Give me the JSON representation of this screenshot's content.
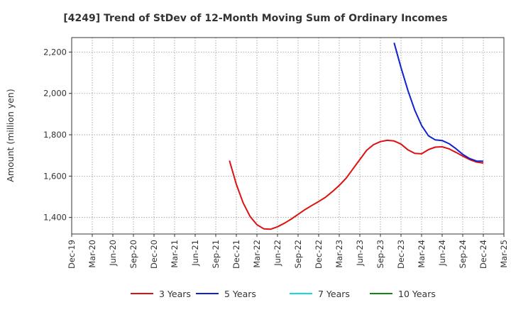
{
  "chart_data": {
    "type": "line",
    "title": "[4249]  Trend of StDev of 12-Month Moving Sum of Ordinary Incomes",
    "xlabel": "",
    "ylabel": "Amount (million yen)",
    "ylim": [
      1320,
      2270
    ],
    "yticks": [
      1400,
      1600,
      1800,
      2000,
      2200
    ],
    "ytick_labels": [
      "1,400",
      "1,600",
      "1,800",
      "2,000",
      "2,200"
    ],
    "x_range": [
      "2019-12",
      "2025-03"
    ],
    "x_ticks": [
      "2019-12",
      "2020-03",
      "2020-06",
      "2020-09",
      "2020-12",
      "2021-03",
      "2021-06",
      "2021-09",
      "2021-12",
      "2022-03",
      "2022-06",
      "2022-09",
      "2022-12",
      "2023-03",
      "2023-06",
      "2023-09",
      "2023-12",
      "2024-03",
      "2024-06",
      "2024-09",
      "2024-12",
      "2025-03"
    ],
    "x_tick_labels": [
      "Dec-19",
      "Mar-20",
      "Jun-20",
      "Sep-20",
      "Dec-20",
      "Mar-21",
      "Jun-21",
      "Sep-21",
      "Dec-21",
      "Mar-22",
      "Jun-22",
      "Sep-22",
      "Dec-22",
      "Mar-23",
      "Jun-23",
      "Sep-23",
      "Dec-23",
      "Mar-24",
      "Jun-24",
      "Sep-24",
      "Dec-24",
      "Mar-25"
    ],
    "grid": true,
    "legend_position": "bottom",
    "series": [
      {
        "name": "3 Years",
        "color": "#dd1111",
        "x": [
          "2021-11",
          "2021-12",
          "2022-01",
          "2022-02",
          "2022-03",
          "2022-04",
          "2022-05",
          "2022-06",
          "2022-07",
          "2022-08",
          "2022-09",
          "2022-10",
          "2022-11",
          "2022-12",
          "2023-01",
          "2023-02",
          "2023-03",
          "2023-04",
          "2023-05",
          "2023-06",
          "2023-07",
          "2023-08",
          "2023-09",
          "2023-10",
          "2023-11",
          "2023-12",
          "2024-01",
          "2024-02",
          "2024-03",
          "2024-04",
          "2024-05",
          "2024-06",
          "2024-07",
          "2024-08",
          "2024-09",
          "2024-10",
          "2024-11",
          "2024-12"
        ],
        "values": [
          1675,
          1560,
          1470,
          1405,
          1365,
          1345,
          1343,
          1355,
          1372,
          1392,
          1415,
          1438,
          1458,
          1477,
          1498,
          1525,
          1555,
          1590,
          1635,
          1680,
          1725,
          1752,
          1767,
          1773,
          1770,
          1755,
          1727,
          1710,
          1708,
          1728,
          1740,
          1742,
          1732,
          1715,
          1697,
          1680,
          1668,
          1663
        ]
      },
      {
        "name": "5 Years",
        "color": "#1122cc",
        "x": [
          "2023-11",
          "2023-12",
          "2024-01",
          "2024-02",
          "2024-03",
          "2024-04",
          "2024-05",
          "2024-06",
          "2024-07",
          "2024-08",
          "2024-09",
          "2024-10",
          "2024-11",
          "2024-12"
        ],
        "values": [
          2245,
          2125,
          2015,
          1920,
          1845,
          1795,
          1775,
          1772,
          1757,
          1733,
          1705,
          1685,
          1673,
          1672
        ]
      },
      {
        "name": "7 Years",
        "color": "#11dddd",
        "x": [],
        "values": []
      },
      {
        "name": "10 Years",
        "color": "#118811",
        "x": [],
        "values": []
      }
    ]
  }
}
